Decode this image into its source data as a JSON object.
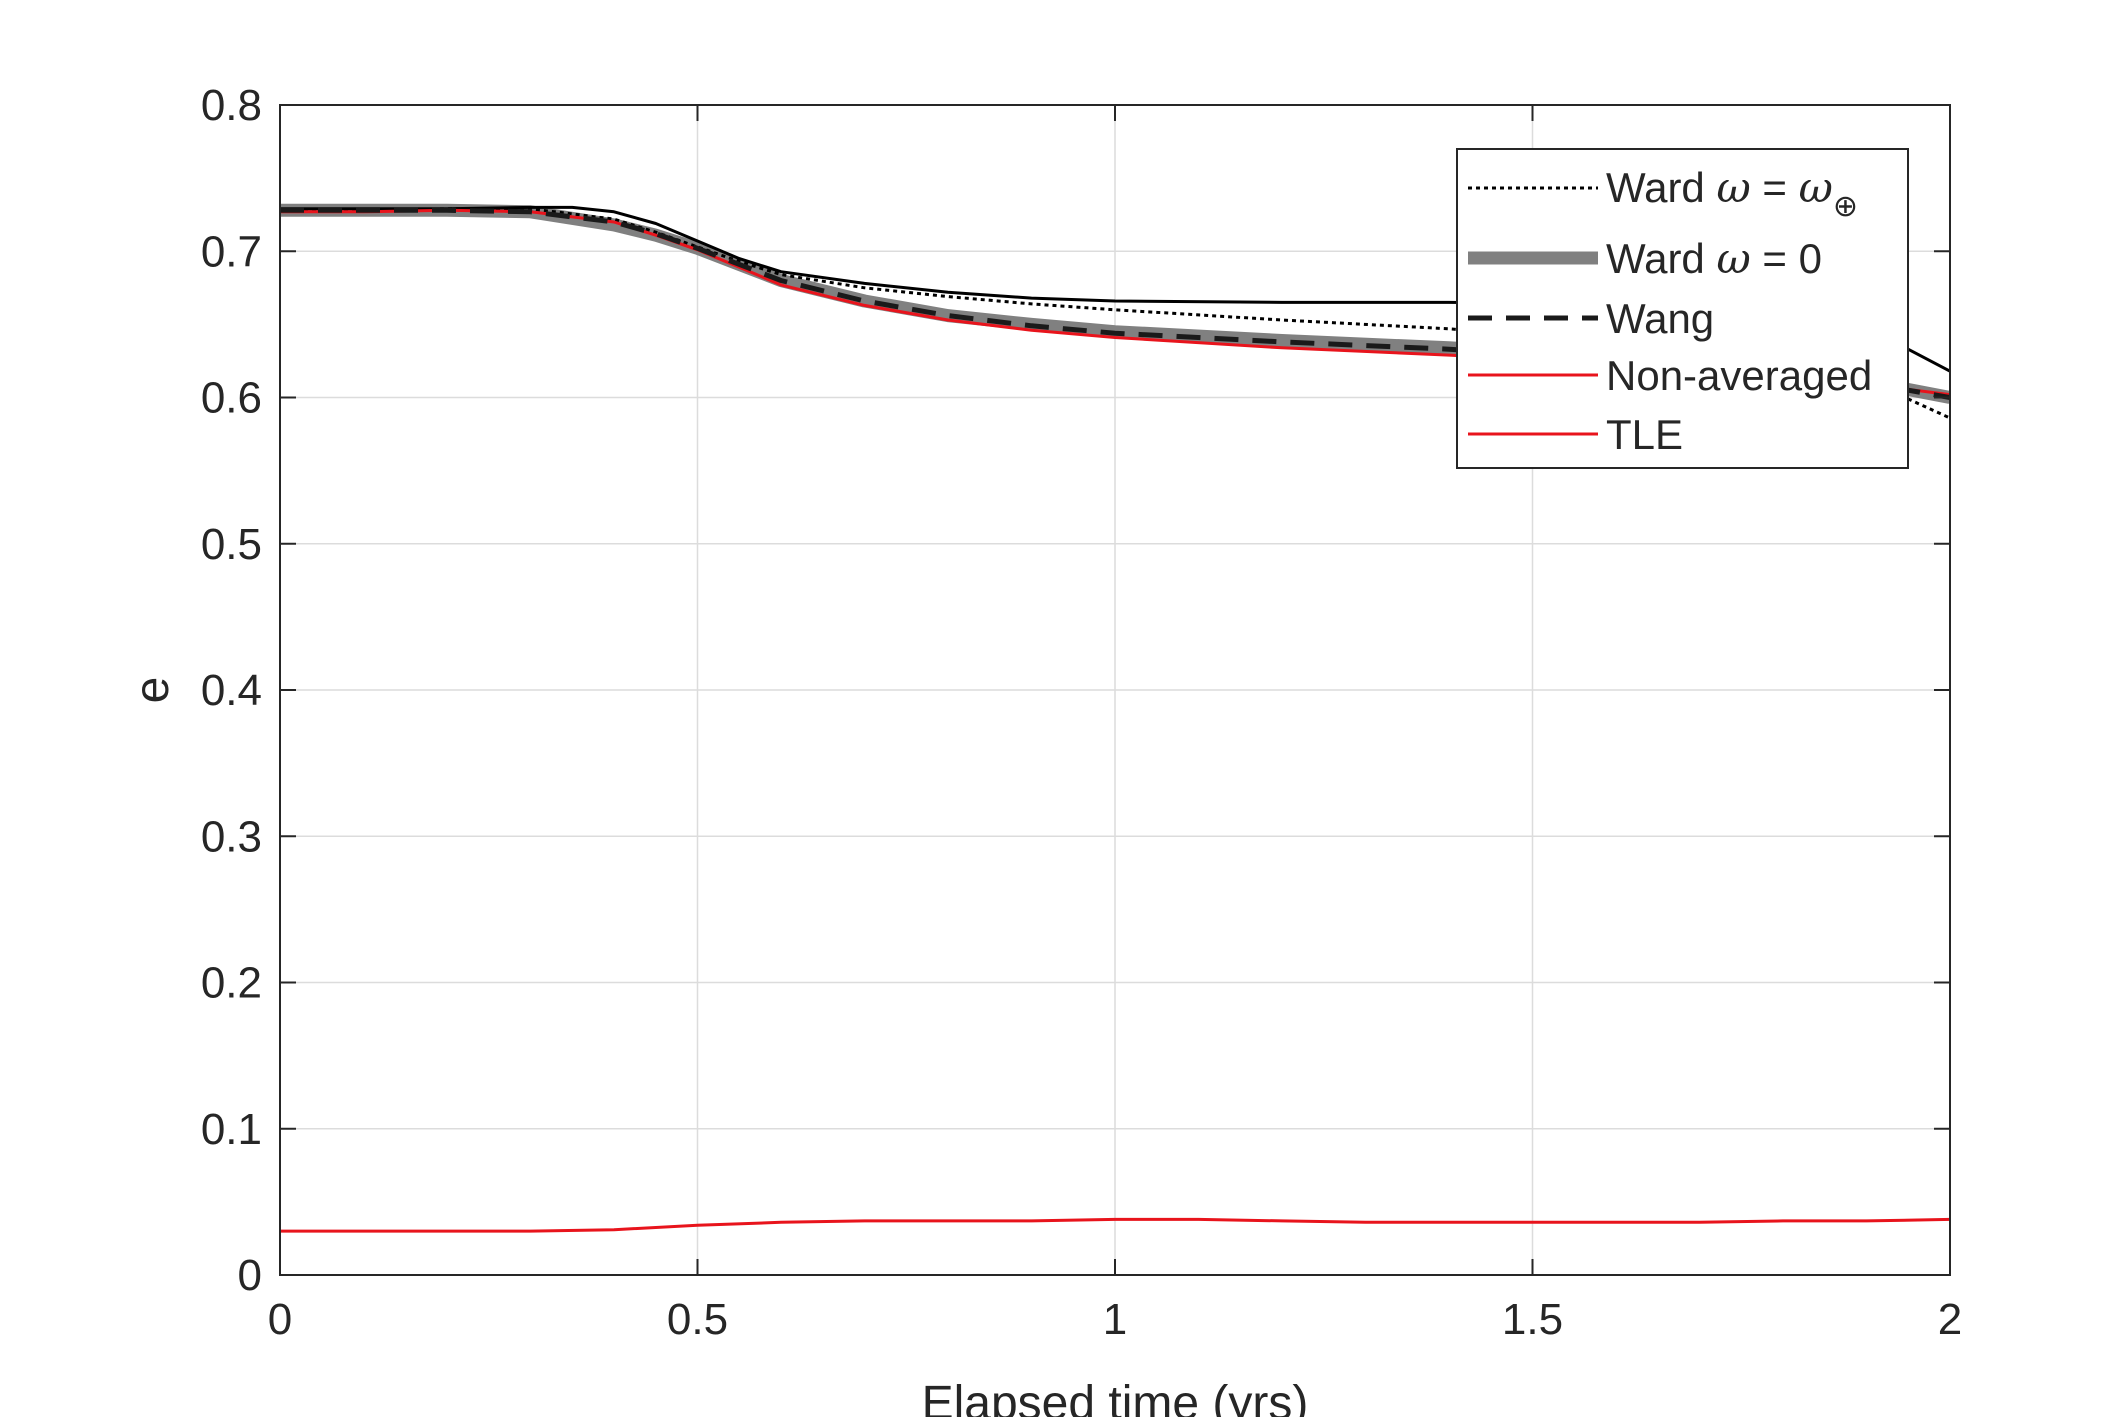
{
  "chart_data": {
    "type": "line",
    "title": "",
    "xlabel": "Elapsed time (yrs)",
    "ylabel": "e",
    "xlim": [
      0,
      2
    ],
    "ylim": [
      0,
      0.8
    ],
    "xticks": [
      0,
      0.5,
      1,
      1.5,
      2
    ],
    "yticks": [
      0,
      0.1,
      0.2,
      0.3,
      0.4,
      0.5,
      0.6,
      0.7,
      0.8
    ],
    "xtick_labels": [
      "0",
      "0.5",
      "1",
      "1.5",
      "2"
    ],
    "ytick_labels": [
      "0",
      "0.1",
      "0.2",
      "0.3",
      "0.4",
      "0.5",
      "0.6",
      "0.7",
      "0.8"
    ],
    "grid": true,
    "legend_position": "top-right",
    "series": [
      {
        "name": "Ward ω = ω⊕",
        "legend_main": "Ward ",
        "legend_omega": "ω",
        "legend_eq": " = ",
        "legend_omega2": "ω",
        "legend_sub": "⊕",
        "color": "#000000",
        "style": "dotted",
        "x": [
          0,
          0.1,
          0.2,
          0.3,
          0.4,
          0.45,
          0.5,
          0.55,
          0.6,
          0.7,
          0.8,
          0.9,
          1.0,
          1.2,
          1.4,
          1.6,
          1.8,
          1.9,
          2.0
        ],
        "y": [
          0.728,
          0.728,
          0.729,
          0.729,
          0.722,
          0.713,
          0.703,
          0.693,
          0.684,
          0.675,
          0.669,
          0.664,
          0.66,
          0.653,
          0.647,
          0.638,
          0.625,
          0.612,
          0.586
        ]
      },
      {
        "name": "Ward ω = 0",
        "legend_main": "Ward ",
        "legend_omega": "ω",
        "legend_eq": " = 0",
        "color": "#808080",
        "style": "thick",
        "x": [
          0,
          0.1,
          0.2,
          0.3,
          0.4,
          0.45,
          0.5,
          0.55,
          0.6,
          0.7,
          0.8,
          0.9,
          1.0,
          1.2,
          1.4,
          1.6,
          1.8,
          1.9,
          2.0
        ],
        "y": [
          0.728,
          0.728,
          0.728,
          0.727,
          0.718,
          0.711,
          0.702,
          0.691,
          0.68,
          0.666,
          0.656,
          0.65,
          0.645,
          0.639,
          0.634,
          0.627,
          0.618,
          0.611,
          0.6
        ]
      },
      {
        "name": "Wang",
        "color": "#1a1a1a",
        "style": "dashed",
        "x": [
          0,
          0.1,
          0.2,
          0.3,
          0.4,
          0.45,
          0.5,
          0.55,
          0.6,
          0.7,
          0.8,
          0.9,
          1.0,
          1.2,
          1.4,
          1.6,
          1.8,
          1.9,
          2.0
        ],
        "y": [
          0.728,
          0.728,
          0.728,
          0.727,
          0.72,
          0.712,
          0.702,
          0.691,
          0.68,
          0.666,
          0.656,
          0.649,
          0.644,
          0.638,
          0.633,
          0.626,
          0.617,
          0.61,
          0.6
        ]
      },
      {
        "name": "Non-averaged",
        "color": "#e8141c",
        "style": "solid",
        "x": [
          0,
          0.1,
          0.2,
          0.3,
          0.4,
          0.45,
          0.5,
          0.55,
          0.6,
          0.7,
          0.8,
          0.9,
          1.0,
          1.2,
          1.4,
          1.6,
          1.8,
          1.9,
          2.0
        ],
        "y": [
          0.727,
          0.727,
          0.728,
          0.727,
          0.72,
          0.711,
          0.701,
          0.689,
          0.677,
          0.663,
          0.653,
          0.646,
          0.641,
          0.634,
          0.629,
          0.623,
          0.615,
          0.609,
          0.602
        ]
      },
      {
        "name": "TLE",
        "color": "#e8141c",
        "style": "solid",
        "x": [
          0,
          0.1,
          0.2,
          0.3,
          0.4,
          0.5,
          0.6,
          0.7,
          0.8,
          0.9,
          1.0,
          1.1,
          1.2,
          1.3,
          1.4,
          1.5,
          1.6,
          1.7,
          1.8,
          1.9,
          2.0
        ],
        "y": [
          0.03,
          0.03,
          0.03,
          0.03,
          0.031,
          0.034,
          0.036,
          0.037,
          0.037,
          0.037,
          0.038,
          0.038,
          0.037,
          0.036,
          0.036,
          0.036,
          0.036,
          0.036,
          0.037,
          0.037,
          0.038
        ]
      },
      {
        "color": "#000000",
        "style": "solid",
        "x": [
          0,
          0.1,
          0.2,
          0.3,
          0.35,
          0.4,
          0.45,
          0.5,
          0.55,
          0.6,
          0.7,
          0.8,
          0.9,
          1.0,
          1.2,
          1.4,
          1.6,
          1.8,
          1.9,
          2.0
        ],
        "y": [
          0.729,
          0.729,
          0.729,
          0.73,
          0.73,
          0.727,
          0.719,
          0.707,
          0.695,
          0.686,
          0.678,
          0.672,
          0.668,
          0.666,
          0.665,
          0.665,
          0.664,
          0.658,
          0.648,
          0.618
        ]
      }
    ]
  }
}
